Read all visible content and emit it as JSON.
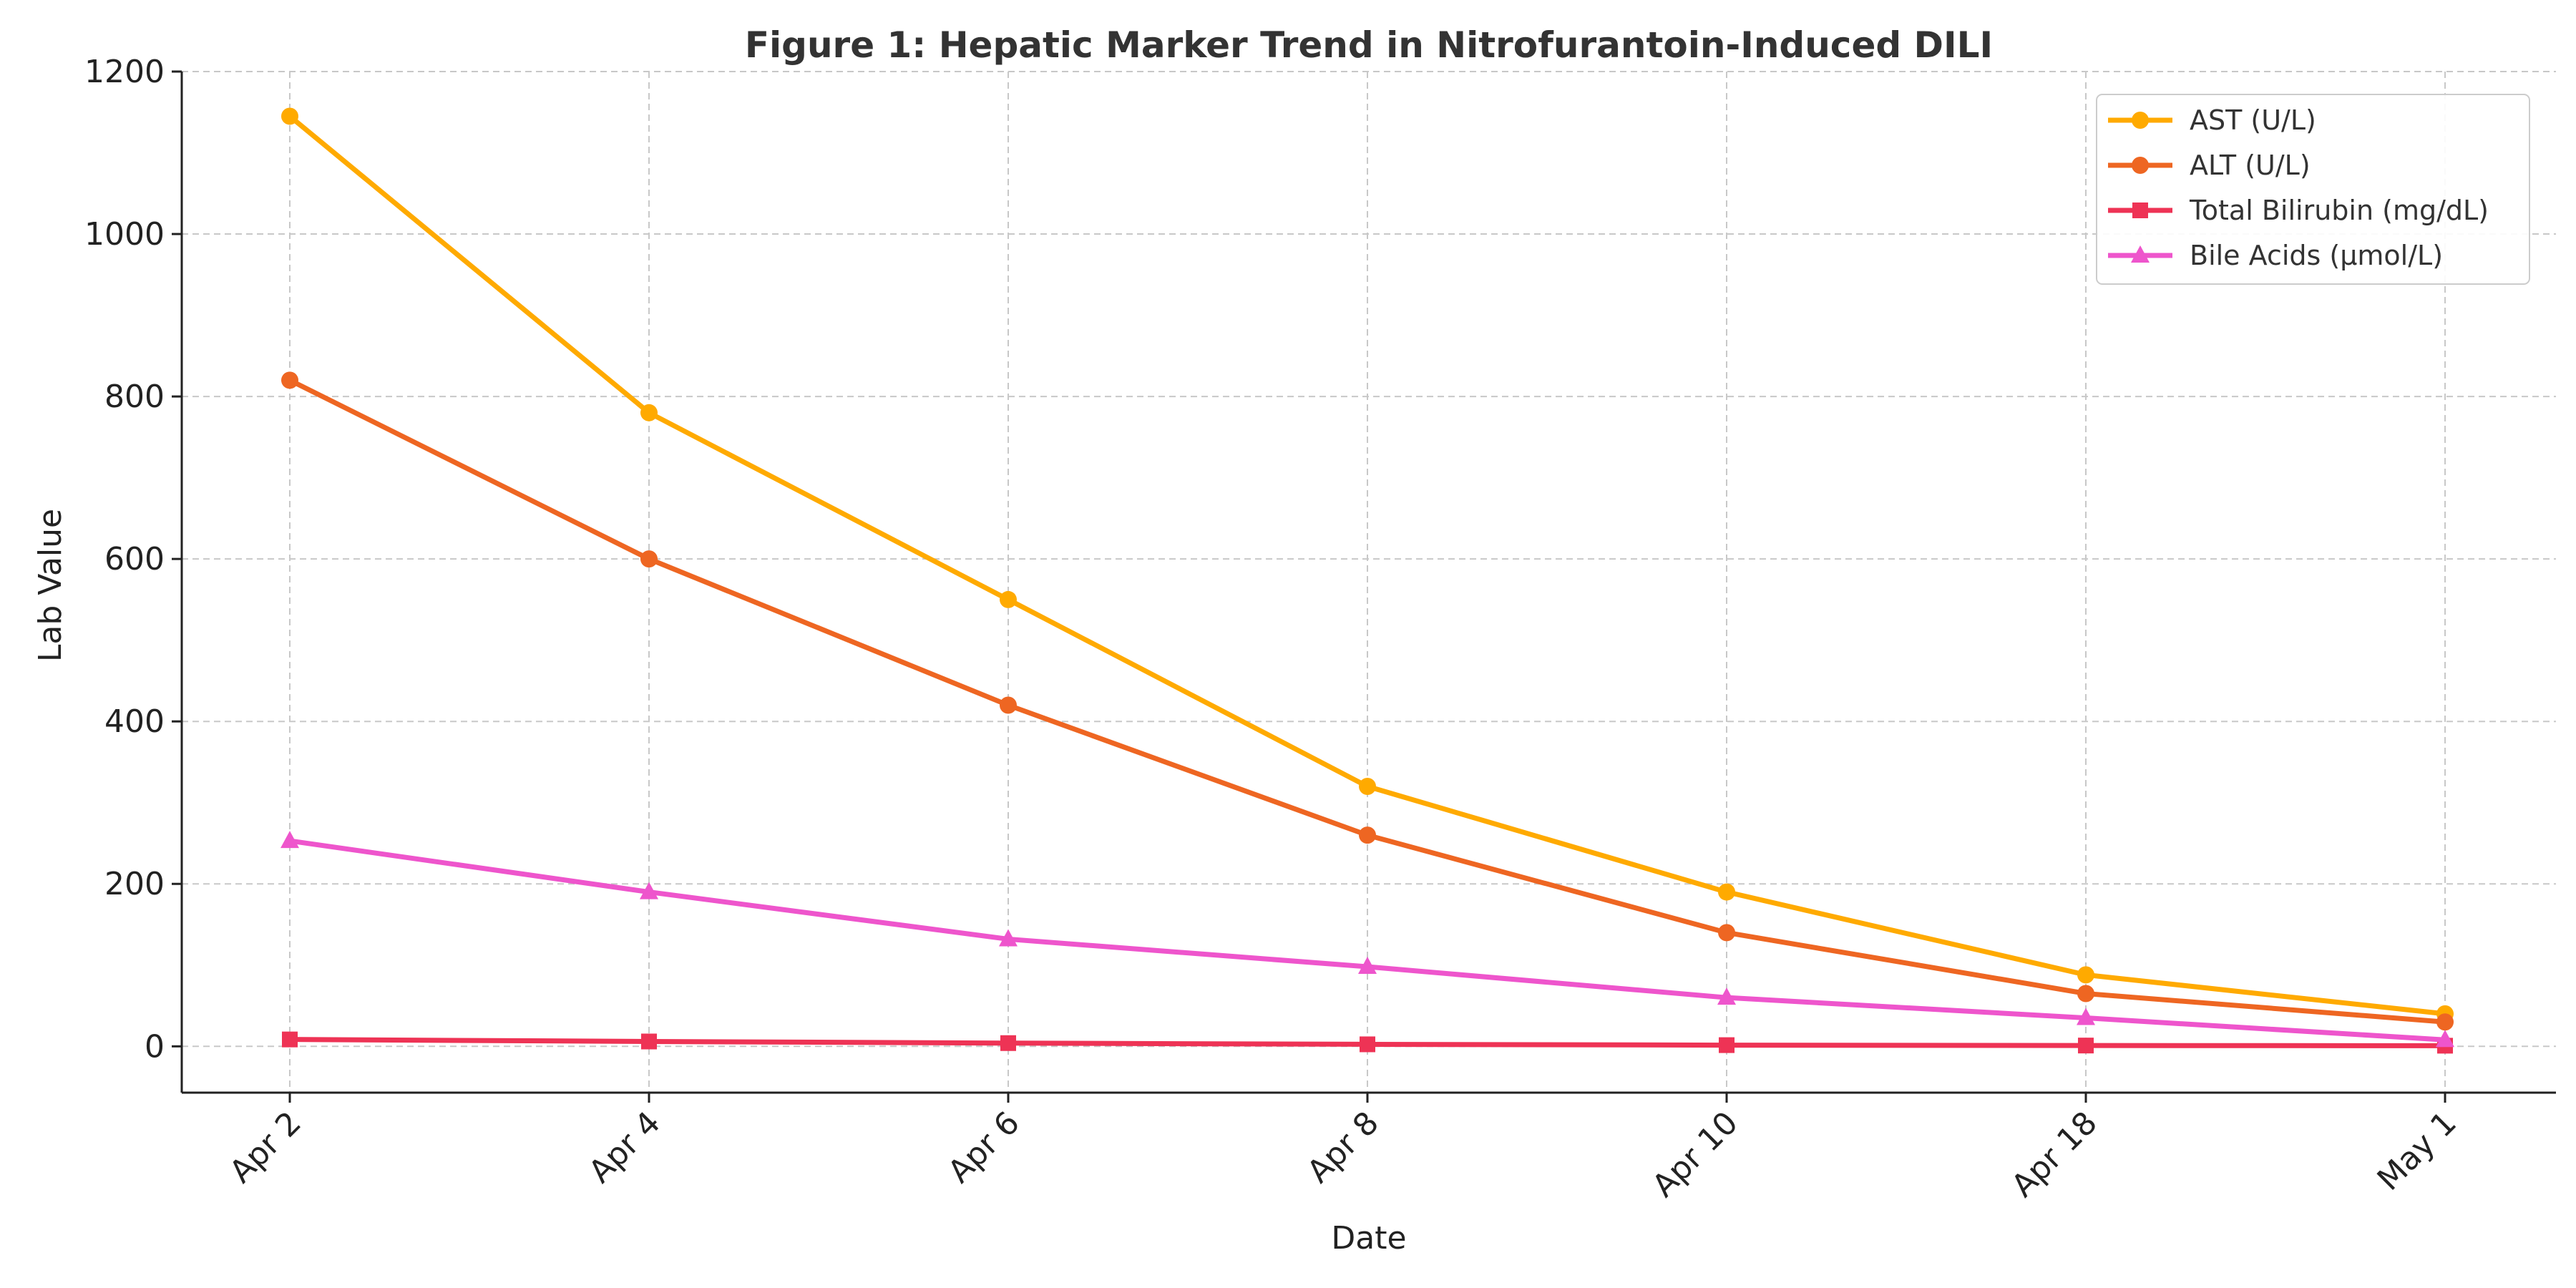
{
  "chart_data": {
    "type": "line",
    "title": "Figure 1: Hepatic Marker Trend in Nitrofurantoin-Induced DILI",
    "xlabel": "Date",
    "ylabel": "Lab Value",
    "categories": [
      "Apr 2",
      "Apr 4",
      "Apr 6",
      "Apr 8",
      "Apr 10",
      "Apr 18",
      "May 1"
    ],
    "yticks": [
      "0",
      "200",
      "400",
      "600",
      "800",
      "1000",
      "1200"
    ],
    "ylim": [
      -57,
      1200
    ],
    "grid": true,
    "legend_position": "top-right",
    "series": [
      {
        "name": "AST (U/L)",
        "color": "#FFAA00",
        "marker": "circle",
        "values": [
          1145,
          780,
          550,
          320,
          190,
          88,
          40
        ]
      },
      {
        "name": "ALT (U/L)",
        "color": "#EE6622",
        "marker": "circle",
        "values": [
          820,
          600,
          420,
          260,
          140,
          65,
          30
        ]
      },
      {
        "name": "Total Bilirubin (mg/dL)",
        "color": "#EE3355",
        "marker": "square",
        "values": [
          8.5,
          6,
          4,
          2.5,
          1.5,
          1.0,
          0.8
        ]
      },
      {
        "name": "Bile Acids (μmol/L)",
        "color": "#EE55CC",
        "marker": "triangle",
        "values": [
          253,
          190,
          132,
          98,
          60,
          35,
          8
        ]
      }
    ]
  }
}
